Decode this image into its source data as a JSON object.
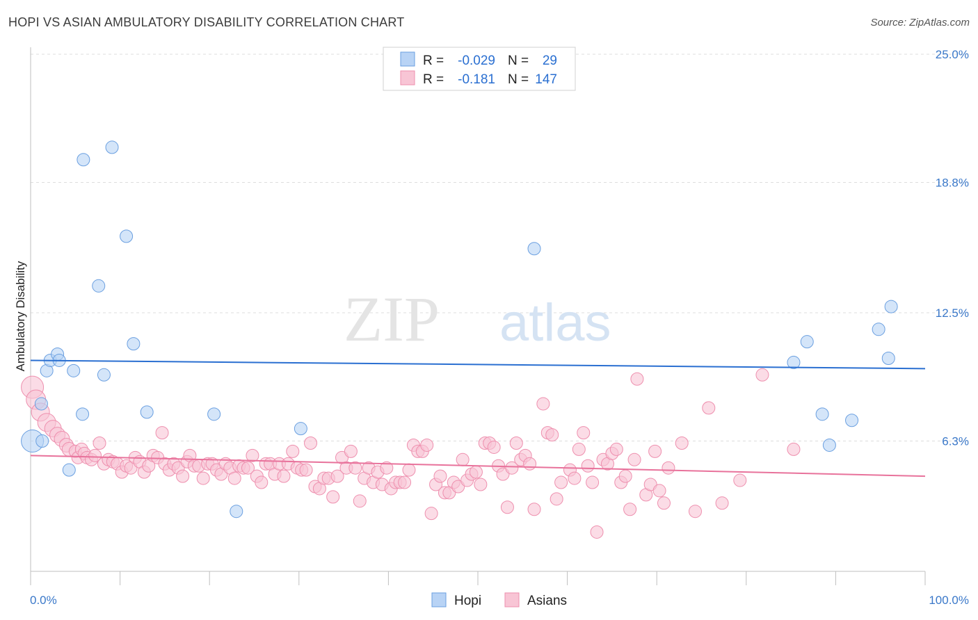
{
  "title": "HOPI VS ASIAN AMBULATORY DISABILITY CORRELATION CHART",
  "source": "Source: ZipAtlas.com",
  "watermark": {
    "zip": "ZIP",
    "atlas": "atlas"
  },
  "colors": {
    "hopi_fill": "#b8d3f5",
    "hopi_stroke": "#6a9fe0",
    "hopi_line": "#2a6fd1",
    "asian_fill": "#f8c5d5",
    "asian_stroke": "#ee8fae",
    "asian_line": "#e8729b",
    "grid": "#dddddd",
    "tick_text": "#3a78c9"
  },
  "legend": {
    "hopi": {
      "r_label": "R =",
      "r_value": "-0.029",
      "n_label": "N =",
      "n_value": "29"
    },
    "asian": {
      "r_label": "R =",
      "r_value": "-0.181",
      "n_label": "N =",
      "n_value": "147"
    }
  },
  "bottom_legend": {
    "hopi": "Hopi",
    "asian": "Asians"
  },
  "chart_data": {
    "type": "scatter",
    "title": "HOPI VS ASIAN AMBULATORY DISABILITY CORRELATION CHART",
    "xlabel": "",
    "ylabel": "Ambulatory Disability",
    "xlim": [
      0,
      100
    ],
    "ylim": [
      0,
      25
    ],
    "y_ticks": [
      {
        "value": 6.3,
        "label": "6.3%"
      },
      {
        "value": 12.5,
        "label": "12.5%"
      },
      {
        "value": 18.8,
        "label": "18.8%"
      },
      {
        "value": 25.0,
        "label": "25.0%"
      }
    ],
    "x_tick_labels": {
      "min": "0.0%",
      "max": "100.0%"
    },
    "x_minor_ticks": [
      0,
      10,
      20,
      30,
      40,
      50,
      60,
      70,
      80,
      90,
      100
    ],
    "series": [
      {
        "name": "Hopi",
        "r": -0.029,
        "n": 29,
        "trend": {
          "x": [
            0,
            100
          ],
          "y": [
            10.2,
            9.8
          ]
        },
        "points": [
          [
            0.2,
            6.3,
            16
          ],
          [
            1.2,
            8.1,
            9
          ],
          [
            1.3,
            6.3,
            9
          ],
          [
            1.8,
            9.7,
            9
          ],
          [
            2.2,
            10.2,
            9
          ],
          [
            3.0,
            10.5,
            9
          ],
          [
            3.2,
            10.2,
            9
          ],
          [
            4.3,
            4.9,
            9
          ],
          [
            4.8,
            9.7,
            9
          ],
          [
            5.9,
            19.9,
            9
          ],
          [
            5.8,
            7.6,
            9
          ],
          [
            7.6,
            13.8,
            9
          ],
          [
            8.2,
            9.5,
            9
          ],
          [
            9.1,
            20.5,
            9
          ],
          [
            10.7,
            16.2,
            9
          ],
          [
            11.5,
            11.0,
            9
          ],
          [
            13.0,
            7.7,
            9
          ],
          [
            20.5,
            7.6,
            9
          ],
          [
            23.0,
            2.9,
            9
          ],
          [
            30.2,
            6.9,
            9
          ],
          [
            56.3,
            15.6,
            9
          ],
          [
            85.3,
            10.1,
            9
          ],
          [
            86.8,
            11.1,
            9
          ],
          [
            88.5,
            7.6,
            9
          ],
          [
            89.3,
            6.1,
            9
          ],
          [
            91.8,
            7.3,
            9
          ],
          [
            94.8,
            11.7,
            9
          ],
          [
            95.9,
            10.3,
            9
          ],
          [
            96.2,
            12.8,
            9
          ]
        ]
      },
      {
        "name": "Asians",
        "r": -0.181,
        "n": 147,
        "trend": {
          "x": [
            0,
            100
          ],
          "y": [
            5.6,
            4.6
          ]
        },
        "points": [
          [
            0.2,
            8.9,
            16
          ],
          [
            0.6,
            8.3,
            14
          ],
          [
            1.1,
            7.7,
            13
          ],
          [
            1.8,
            7.2,
            13
          ],
          [
            2.5,
            6.9,
            12
          ],
          [
            3.0,
            6.6,
            11
          ],
          [
            3.5,
            6.4,
            11
          ],
          [
            4.0,
            6.1,
            10
          ],
          [
            4.3,
            5.9,
            10
          ],
          [
            5.0,
            5.8,
            9
          ],
          [
            5.3,
            5.5,
            9
          ],
          [
            5.7,
            5.9,
            9
          ],
          [
            6.0,
            5.7,
            9
          ],
          [
            6.3,
            5.5,
            9
          ],
          [
            6.8,
            5.4,
            9
          ],
          [
            7.2,
            5.6,
            9
          ],
          [
            7.7,
            6.2,
            9
          ],
          [
            8.2,
            5.2,
            9
          ],
          [
            8.7,
            5.4,
            9
          ],
          [
            9.2,
            5.3,
            9
          ],
          [
            9.7,
            5.2,
            9
          ],
          [
            10.2,
            4.8,
            9
          ],
          [
            10.7,
            5.1,
            9
          ],
          [
            11.2,
            5.0,
            9
          ],
          [
            11.7,
            5.5,
            9
          ],
          [
            12.2,
            5.3,
            9
          ],
          [
            12.7,
            4.8,
            9
          ],
          [
            13.2,
            5.1,
            9
          ],
          [
            13.7,
            5.6,
            9
          ],
          [
            14.2,
            5.5,
            9
          ],
          [
            14.7,
            6.7,
            9
          ],
          [
            15.0,
            5.2,
            9
          ],
          [
            15.5,
            4.9,
            9
          ],
          [
            16.0,
            5.2,
            9
          ],
          [
            16.5,
            5.0,
            9
          ],
          [
            17.0,
            4.6,
            9
          ],
          [
            17.5,
            5.3,
            9
          ],
          [
            17.8,
            5.6,
            9
          ],
          [
            18.3,
            5.1,
            9
          ],
          [
            18.8,
            5.1,
            9
          ],
          [
            19.3,
            4.5,
            9
          ],
          [
            19.8,
            5.2,
            9
          ],
          [
            20.3,
            5.2,
            9
          ],
          [
            20.8,
            4.9,
            9
          ],
          [
            21.3,
            4.7,
            9
          ],
          [
            21.8,
            5.2,
            9
          ],
          [
            22.3,
            5.0,
            9
          ],
          [
            22.8,
            4.5,
            9
          ],
          [
            23.3,
            5.1,
            9
          ],
          [
            23.8,
            5.0,
            9
          ],
          [
            24.3,
            5.0,
            9
          ],
          [
            24.8,
            5.6,
            9
          ],
          [
            25.3,
            4.6,
            9
          ],
          [
            25.8,
            4.3,
            9
          ],
          [
            26.3,
            5.2,
            9
          ],
          [
            26.8,
            5.2,
            9
          ],
          [
            27.3,
            4.7,
            9
          ],
          [
            27.8,
            5.2,
            9
          ],
          [
            28.3,
            4.6,
            9
          ],
          [
            28.8,
            5.2,
            9
          ],
          [
            29.3,
            5.8,
            9
          ],
          [
            29.8,
            5.0,
            9
          ],
          [
            30.3,
            4.9,
            9
          ],
          [
            30.8,
            4.9,
            9
          ],
          [
            31.3,
            6.2,
            9
          ],
          [
            31.8,
            4.1,
            9
          ],
          [
            32.3,
            4.0,
            9
          ],
          [
            32.8,
            4.5,
            9
          ],
          [
            33.3,
            4.5,
            9
          ],
          [
            33.8,
            3.6,
            9
          ],
          [
            34.3,
            4.6,
            9
          ],
          [
            34.8,
            5.5,
            9
          ],
          [
            35.3,
            5.0,
            9
          ],
          [
            35.8,
            5.8,
            9
          ],
          [
            36.3,
            5.0,
            9
          ],
          [
            36.8,
            3.4,
            9
          ],
          [
            37.3,
            4.5,
            9
          ],
          [
            37.8,
            5.0,
            9
          ],
          [
            38.3,
            4.3,
            9
          ],
          [
            38.8,
            4.8,
            9
          ],
          [
            39.3,
            4.2,
            9
          ],
          [
            39.8,
            5.0,
            9
          ],
          [
            40.3,
            4.0,
            9
          ],
          [
            40.8,
            4.3,
            9
          ],
          [
            41.3,
            4.3,
            9
          ],
          [
            41.8,
            4.3,
            9
          ],
          [
            42.3,
            4.9,
            9
          ],
          [
            42.8,
            6.1,
            9
          ],
          [
            43.3,
            5.8,
            9
          ],
          [
            43.8,
            5.8,
            9
          ],
          [
            44.3,
            6.1,
            9
          ],
          [
            44.8,
            2.8,
            9
          ],
          [
            45.3,
            4.2,
            9
          ],
          [
            45.8,
            4.6,
            9
          ],
          [
            46.3,
            3.8,
            9
          ],
          [
            46.8,
            3.8,
            9
          ],
          [
            47.3,
            4.3,
            9
          ],
          [
            47.8,
            4.1,
            9
          ],
          [
            48.3,
            5.4,
            9
          ],
          [
            48.8,
            4.4,
            9
          ],
          [
            49.3,
            4.7,
            9
          ],
          [
            49.8,
            4.8,
            9
          ],
          [
            50.3,
            4.2,
            9
          ],
          [
            50.8,
            6.2,
            9
          ],
          [
            51.3,
            6.2,
            9
          ],
          [
            51.8,
            6.0,
            9
          ],
          [
            52.3,
            5.1,
            9
          ],
          [
            52.8,
            4.7,
            9
          ],
          [
            53.3,
            3.1,
            9
          ],
          [
            53.8,
            5.0,
            9
          ],
          [
            54.3,
            6.2,
            9
          ],
          [
            54.8,
            5.4,
            9
          ],
          [
            55.3,
            5.6,
            9
          ],
          [
            55.8,
            5.2,
            9
          ],
          [
            56.3,
            3.0,
            9
          ],
          [
            57.3,
            8.1,
            9
          ],
          [
            57.8,
            6.7,
            9
          ],
          [
            58.3,
            6.6,
            9
          ],
          [
            58.8,
            3.5,
            9
          ],
          [
            59.3,
            4.3,
            9
          ],
          [
            60.3,
            4.9,
            9
          ],
          [
            60.8,
            4.5,
            9
          ],
          [
            61.3,
            5.9,
            9
          ],
          [
            61.8,
            6.7,
            9
          ],
          [
            62.3,
            5.1,
            9
          ],
          [
            62.8,
            4.3,
            9
          ],
          [
            63.3,
            1.9,
            9
          ],
          [
            64.0,
            5.4,
            9
          ],
          [
            64.5,
            5.2,
            9
          ],
          [
            65.0,
            5.7,
            9
          ],
          [
            65.5,
            5.9,
            9
          ],
          [
            66.0,
            4.3,
            9
          ],
          [
            66.5,
            4.6,
            9
          ],
          [
            67.0,
            3.0,
            9
          ],
          [
            67.5,
            5.4,
            9
          ],
          [
            67.8,
            9.3,
            9
          ],
          [
            68.8,
            3.7,
            9
          ],
          [
            69.3,
            4.2,
            9
          ],
          [
            69.8,
            5.8,
            9
          ],
          [
            70.3,
            3.9,
            9
          ],
          [
            70.8,
            3.3,
            9
          ],
          [
            71.3,
            5.0,
            9
          ],
          [
            72.8,
            6.2,
            9
          ],
          [
            74.3,
            2.9,
            9
          ],
          [
            75.8,
            7.9,
            9
          ],
          [
            77.3,
            3.3,
            9
          ],
          [
            79.3,
            4.4,
            9
          ],
          [
            81.8,
            9.5,
            9
          ],
          [
            85.3,
            5.9,
            9
          ]
        ]
      }
    ]
  }
}
